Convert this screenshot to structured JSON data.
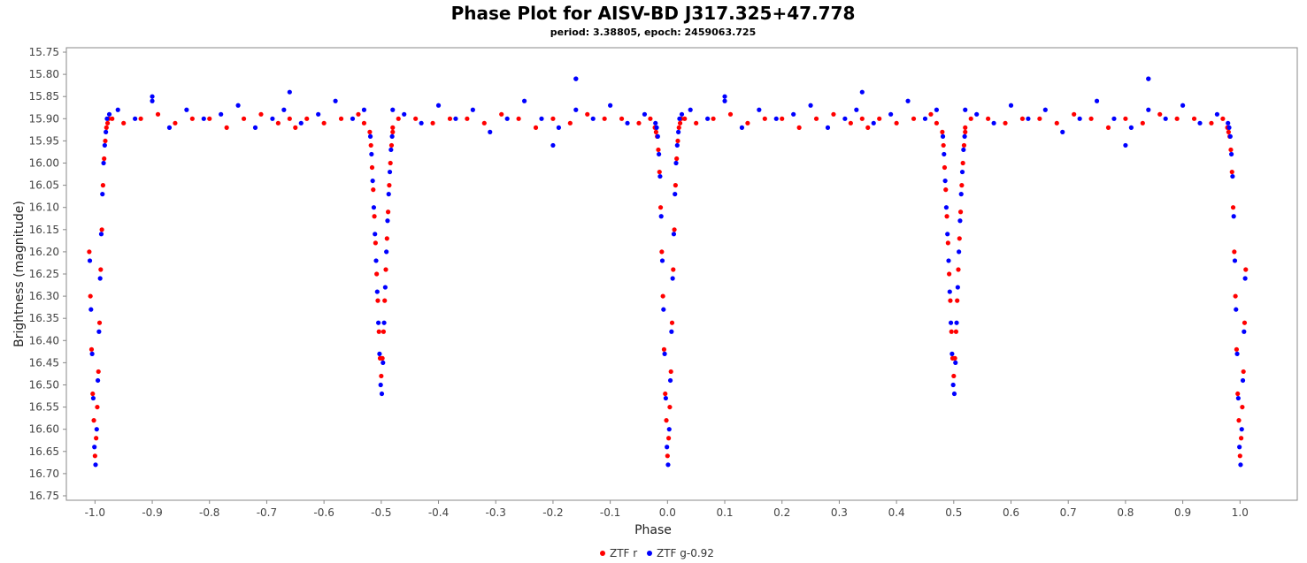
{
  "chart_data": {
    "type": "scatter",
    "title": "Phase Plot for AISV-BD J317.325+47.778",
    "subtitle": "period: 3.38805, epoch: 2459063.725",
    "xlabel": "Phase",
    "ylabel": "Brightness (magnitude)",
    "xlim": [
      -1.05,
      1.1
    ],
    "ylim": [
      16.76,
      15.74
    ],
    "y_inverted": true,
    "x_ticks": [
      "-1.0",
      "-0.9",
      "-0.8",
      "-0.7",
      "-0.6",
      "-0.5",
      "-0.4",
      "-0.3",
      "-0.2",
      "-0.1",
      "0.0",
      "0.1",
      "0.2",
      "0.3",
      "0.4",
      "0.5",
      "0.6",
      "0.7",
      "0.8",
      "0.9",
      "1.0"
    ],
    "y_ticks": [
      "15.75",
      "15.80",
      "15.85",
      "15.90",
      "15.95",
      "16.00",
      "16.05",
      "16.10",
      "16.15",
      "16.20",
      "16.25",
      "16.30",
      "16.35",
      "16.40",
      "16.45",
      "16.50",
      "16.55",
      "16.60",
      "16.65",
      "16.70",
      "16.75"
    ],
    "grid": false,
    "legend_position": "bottom-center",
    "period_repeat": 1.0,
    "series": [
      {
        "name": "ZTF r",
        "color": "#ff0000",
        "x": [
          0.0,
          0.002,
          -0.002,
          0.004,
          -0.004,
          0.006,
          -0.006,
          0.008,
          -0.008,
          0.01,
          -0.01,
          0.012,
          -0.012,
          0.014,
          -0.014,
          0.016,
          -0.016,
          0.018,
          -0.018,
          0.02,
          -0.02,
          0.022,
          0.024,
          -0.022,
          0.03,
          0.05,
          0.08,
          0.11,
          0.14,
          0.17,
          0.2,
          0.23,
          0.26,
          0.29,
          0.32,
          0.34,
          0.35,
          0.37,
          0.4,
          0.43,
          0.46,
          0.47,
          -0.03,
          -0.05,
          -0.08,
          -0.11,
          -0.14,
          -0.17,
          -0.2,
          -0.23,
          -0.26,
          -0.29,
          -0.32,
          -0.35,
          -0.38,
          -0.41,
          -0.44,
          -0.47,
          -0.48,
          0.48,
          0.482,
          0.484,
          0.486,
          0.488,
          0.49,
          0.492,
          0.494,
          0.496,
          0.498,
          0.5,
          0.502,
          0.504,
          0.506,
          0.508,
          0.51,
          0.512,
          0.514,
          0.516,
          0.518,
          0.52
        ],
        "y": [
          16.66,
          16.62,
          16.58,
          16.55,
          16.52,
          16.47,
          16.42,
          16.36,
          16.3,
          16.24,
          16.2,
          16.15,
          16.1,
          16.05,
          16.02,
          15.99,
          15.97,
          15.95,
          15.94,
          15.92,
          15.93,
          15.91,
          15.9,
          15.92,
          15.9,
          15.91,
          15.9,
          15.89,
          15.91,
          15.9,
          15.9,
          15.92,
          15.9,
          15.89,
          15.91,
          15.9,
          15.92,
          15.9,
          15.91,
          15.9,
          15.89,
          15.91,
          15.9,
          15.91,
          15.9,
          15.9,
          15.89,
          15.91,
          15.9,
          15.92,
          15.9,
          15.89,
          15.91,
          15.9,
          15.9,
          15.91,
          15.9,
          15.9,
          15.92,
          15.93,
          15.96,
          16.01,
          16.06,
          16.12,
          16.18,
          16.25,
          16.31,
          16.38,
          16.44,
          16.48,
          16.44,
          16.38,
          16.31,
          16.24,
          16.17,
          16.11,
          16.05,
          16.0,
          15.96,
          15.93
        ]
      },
      {
        "name": "ZTF g-0.92",
        "color": "#0000ff",
        "x": [
          0.001,
          -0.001,
          0.003,
          -0.003,
          0.005,
          -0.005,
          0.007,
          -0.007,
          0.009,
          -0.009,
          0.011,
          -0.011,
          0.013,
          -0.013,
          0.015,
          -0.015,
          0.017,
          -0.017,
          0.019,
          -0.019,
          0.021,
          -0.021,
          0.025,
          0.04,
          0.07,
          0.1,
          0.13,
          0.16,
          0.19,
          0.22,
          0.25,
          0.28,
          0.31,
          0.33,
          0.36,
          0.39,
          0.42,
          0.45,
          0.47,
          -0.04,
          -0.07,
          -0.1,
          -0.13,
          -0.16,
          -0.19,
          -0.22,
          -0.25,
          -0.28,
          -0.31,
          -0.34,
          -0.37,
          -0.4,
          -0.43,
          -0.46,
          -0.48,
          0.481,
          0.483,
          0.485,
          0.487,
          0.489,
          0.491,
          0.493,
          0.495,
          0.497,
          0.499,
          0.501,
          0.503,
          0.505,
          0.507,
          0.509,
          0.511,
          0.513,
          0.515,
          0.517,
          0.519,
          0.34,
          -0.16,
          0.84,
          0.1,
          -0.2
        ],
        "y": [
          16.68,
          16.64,
          16.6,
          16.53,
          16.49,
          16.43,
          16.38,
          16.33,
          16.26,
          16.22,
          16.16,
          16.12,
          16.07,
          16.03,
          16.0,
          15.98,
          15.96,
          15.94,
          15.93,
          15.92,
          15.9,
          15.91,
          15.89,
          15.88,
          15.9,
          15.86,
          15.92,
          15.88,
          15.9,
          15.89,
          15.87,
          15.92,
          15.9,
          15.88,
          15.91,
          15.89,
          15.86,
          15.9,
          15.88,
          15.89,
          15.91,
          15.87,
          15.9,
          15.88,
          15.92,
          15.9,
          15.86,
          15.9,
          15.93,
          15.88,
          15.9,
          15.87,
          15.91,
          15.89,
          15.88,
          15.94,
          15.98,
          16.04,
          16.1,
          16.16,
          16.22,
          16.29,
          16.36,
          16.43,
          16.5,
          16.52,
          16.45,
          16.36,
          16.28,
          16.2,
          16.13,
          16.07,
          16.02,
          15.97,
          15.94,
          15.84,
          15.81,
          15.81,
          15.85,
          15.96
        ]
      }
    ]
  }
}
